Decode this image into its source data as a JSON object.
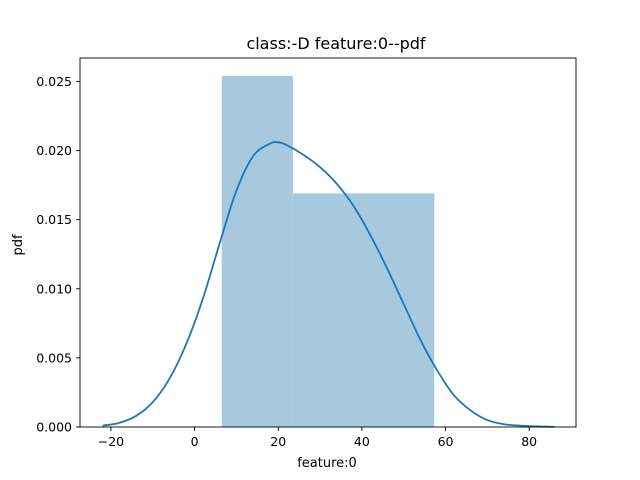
{
  "chart_data": {
    "type": "bar",
    "title": "class:-D feature:0--pdf",
    "xlabel": "feature:0",
    "ylabel": "pdf",
    "xlim": [
      -27.4,
      91.2
    ],
    "ylim": [
      0,
      0.0267
    ],
    "xticks": [
      -20,
      0,
      20,
      40,
      60,
      80
    ],
    "yticks": [
      0.0,
      0.005,
      0.01,
      0.015,
      0.02,
      0.025
    ],
    "ytick_labels": [
      "0.000",
      "0.005",
      "0.010",
      "0.015",
      "0.020",
      "0.025"
    ],
    "grid": false,
    "histogram": {
      "color": "#a6c9e0",
      "bins": [
        {
          "x0": 6.5,
          "x1": 23.5,
          "density": 0.0254
        },
        {
          "x0": 23.5,
          "x1": 57.3,
          "density": 0.0169
        }
      ]
    },
    "kde": {
      "color": "#1f77b4",
      "x": [
        -22,
        -18,
        -14,
        -10,
        -6,
        -2,
        2,
        6,
        10,
        14,
        18,
        20,
        22,
        26,
        30,
        34,
        38,
        42,
        46,
        50,
        54,
        58,
        62,
        66,
        70,
        74,
        78,
        82,
        86
      ],
      "y": [
        0.0001,
        0.0003,
        0.0008,
        0.0018,
        0.0035,
        0.006,
        0.0093,
        0.0133,
        0.0171,
        0.0196,
        0.0205,
        0.0206,
        0.0204,
        0.0197,
        0.0188,
        0.0176,
        0.016,
        0.0139,
        0.0115,
        0.0089,
        0.0063,
        0.0041,
        0.0023,
        0.0012,
        0.0005,
        0.0002,
        0.0001,
        4e-05,
        1e-05
      ]
    }
  }
}
